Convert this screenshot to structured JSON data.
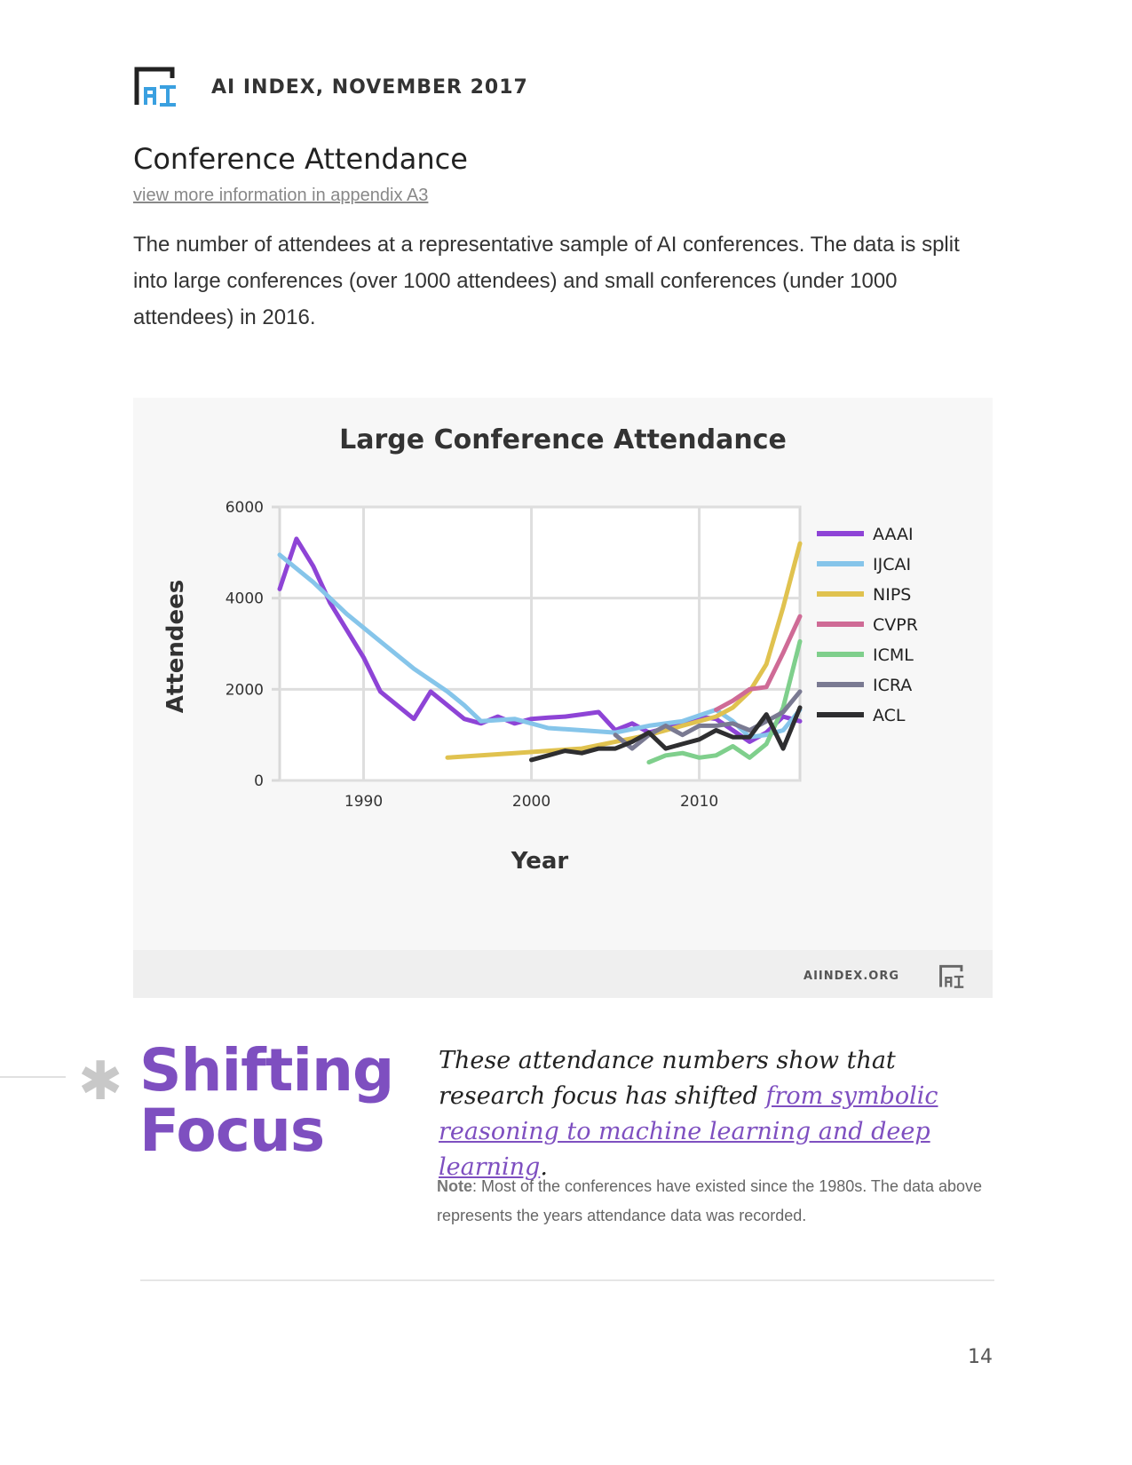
{
  "header": {
    "logo_icon": "ai-index-logo-icon",
    "title": "AI INDEX, NOVEMBER 2017"
  },
  "section": {
    "title": "Conference Attendance",
    "appendix_link": "view more information in appendix A3",
    "intro": "The number of attendees at a representative sample of AI conferences. The data is split into large conferences (over 1000 attendees) and small conferences (under 1000 attendees) in 2016."
  },
  "chart_footer": {
    "site": "AIINDEX.ORG",
    "logo_icon": "ai-index-logo-icon"
  },
  "chart_data": {
    "type": "line",
    "title": "Large Conference Attendance",
    "xlabel": "Year",
    "ylabel": "Attendees",
    "xlim": [
      1985,
      2016
    ],
    "ylim": [
      0,
      6000
    ],
    "xticks": [
      1990,
      2000,
      2010
    ],
    "yticks": [
      0,
      2000,
      4000,
      6000
    ],
    "grid": true,
    "legend": "right",
    "series": [
      {
        "name": "AAAI",
        "color": "#8e44d6",
        "x": [
          1985,
          1986,
          1987,
          1988,
          1989,
          1990,
          1991,
          1992,
          1993,
          1994,
          1995,
          1996,
          1997,
          1998,
          1999,
          2000,
          2001,
          2002,
          2003,
          2004,
          2005,
          2006,
          2007,
          2008,
          2009,
          2010,
          2011,
          2012,
          2013,
          2014,
          2015,
          2016
        ],
        "y": [
          4200,
          5300,
          4700,
          3900,
          3300,
          2700,
          1950,
          1650,
          1350,
          1950,
          1650,
          1350,
          1250,
          1400,
          1250,
          1350,
          1380,
          1400,
          1450,
          1500,
          1100,
          1250,
          1050,
          1150,
          1250,
          1400,
          1350,
          1100,
          850,
          1050,
          1400,
          1300
        ]
      },
      {
        "name": "IJCAI",
        "color": "#86c5ea",
        "x": [
          1985,
          1987,
          1989,
          1991,
          1993,
          1995,
          1996,
          1997,
          1999,
          2001,
          2003,
          2005,
          2007,
          2009,
          2011,
          2012,
          2013,
          2014,
          2015,
          2016
        ],
        "y": [
          4950,
          4350,
          3650,
          3050,
          2450,
          1950,
          1650,
          1300,
          1350,
          1150,
          1100,
          1050,
          1200,
          1300,
          1550,
          1300,
          950,
          1000,
          1100,
          1550
        ]
      },
      {
        "name": "NIPS",
        "color": "#e0c24f",
        "x": [
          1995,
          1997,
          1999,
          2001,
          2003,
          2005,
          2007,
          2009,
          2011,
          2012,
          2013,
          2014,
          2015,
          2016
        ],
        "y": [
          500,
          550,
          600,
          650,
          700,
          850,
          1000,
          1200,
          1400,
          1600,
          1950,
          2550,
          3800,
          5200
        ]
      },
      {
        "name": "CVPR",
        "color": "#cf6b96",
        "x": [
          2011,
          2012,
          2013,
          2014,
          2015,
          2016
        ],
        "y": [
          1550,
          1750,
          2000,
          2050,
          2800,
          3600
        ]
      },
      {
        "name": "ICML",
        "color": "#7fcf8c",
        "x": [
          2007,
          2008,
          2009,
          2010,
          2011,
          2012,
          2013,
          2014,
          2015,
          2016
        ],
        "y": [
          400,
          550,
          600,
          500,
          550,
          750,
          500,
          800,
          1600,
          3050
        ]
      },
      {
        "name": "ICRA",
        "color": "#7a7a92",
        "x": [
          2005,
          2006,
          2007,
          2008,
          2009,
          2010,
          2011,
          2012,
          2013,
          2014,
          2015,
          2016
        ],
        "y": [
          1000,
          700,
          1000,
          1200,
          1000,
          1200,
          1200,
          1250,
          1100,
          1300,
          1500,
          1950
        ]
      },
      {
        "name": "ACL",
        "color": "#2e2e30",
        "x": [
          2000,
          2001,
          2002,
          2003,
          2004,
          2005,
          2006,
          2007,
          2008,
          2009,
          2010,
          2011,
          2012,
          2013,
          2014,
          2015,
          2016
        ],
        "y": [
          450,
          550,
          650,
          600,
          700,
          700,
          850,
          1050,
          700,
          800,
          900,
          1100,
          950,
          950,
          1450,
          700,
          1600
        ]
      }
    ]
  },
  "callout": {
    "title_line1": "Shifting",
    "title_line2": "Focus",
    "quote_pre": "These attendance numbers show that research focus has shifted ",
    "quote_link": "from symbolic reasoning to machine learning and deep learning",
    "quote_post": ".",
    "note_label": "Note",
    "note_text": ": Most of the conferences have existed since the 1980s. The data above represents the years attendance data was recorded."
  },
  "page_number": "14"
}
